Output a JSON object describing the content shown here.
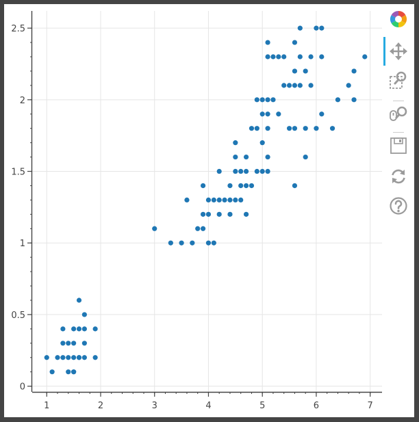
{
  "toolbar": {
    "tools": [
      {
        "name": "bokeh-logo-icon",
        "active": false
      },
      {
        "name": "pan-icon",
        "active": true
      },
      {
        "name": "box-zoom-icon",
        "active": false
      },
      {
        "name": "wheel-zoom-icon",
        "active": false
      },
      {
        "name": "save-icon",
        "active": false
      },
      {
        "name": "reset-icon",
        "active": false
      },
      {
        "name": "help-icon",
        "active": false
      }
    ]
  },
  "colors": {
    "point": "#1f77b4",
    "grid": "#e5e5e5",
    "axis": "#444444",
    "accent": "#26aae1"
  },
  "chart_data": {
    "type": "scatter",
    "title": "",
    "xlabel": "",
    "ylabel": "",
    "xlim": [
      0.73,
      7.22
    ],
    "ylim": [
      -0.04,
      2.62
    ],
    "xticks": [
      1,
      2,
      3,
      4,
      5,
      6,
      7
    ],
    "yticks": [
      0,
      0.5,
      1,
      1.5,
      2,
      2.5
    ],
    "xtick_labels": [
      "1",
      "2",
      "3",
      "4",
      "5",
      "6",
      "7"
    ],
    "ytick_labels": [
      "0",
      "0.5",
      "1",
      "1.5",
      "2",
      "2.5"
    ],
    "grid": true,
    "legend": "none",
    "series": [
      {
        "color": "#1f77b4",
        "points": [
          [
            1.0,
            0.2
          ],
          [
            1.1,
            0.1
          ],
          [
            1.2,
            0.2
          ],
          [
            1.3,
            0.2
          ],
          [
            1.3,
            0.3
          ],
          [
            1.3,
            0.4
          ],
          [
            1.4,
            0.2
          ],
          [
            1.4,
            0.3
          ],
          [
            1.4,
            0.1
          ],
          [
            1.5,
            0.2
          ],
          [
            1.5,
            0.1
          ],
          [
            1.5,
            0.3
          ],
          [
            1.5,
            0.4
          ],
          [
            1.6,
            0.2
          ],
          [
            1.6,
            0.4
          ],
          [
            1.6,
            0.6
          ],
          [
            1.7,
            0.2
          ],
          [
            1.7,
            0.3
          ],
          [
            1.7,
            0.4
          ],
          [
            1.7,
            0.5
          ],
          [
            1.9,
            0.2
          ],
          [
            1.9,
            0.4
          ],
          [
            1.6,
            0.2
          ],
          [
            1.5,
            0.1
          ],
          [
            3.0,
            1.1
          ],
          [
            3.3,
            1.0
          ],
          [
            3.5,
            1.0
          ],
          [
            3.6,
            1.3
          ],
          [
            3.7,
            1.0
          ],
          [
            3.8,
            1.1
          ],
          [
            3.9,
            1.1
          ],
          [
            3.9,
            1.2
          ],
          [
            3.9,
            1.4
          ],
          [
            4.0,
            1.0
          ],
          [
            4.0,
            1.2
          ],
          [
            4.0,
            1.3
          ],
          [
            4.1,
            1.0
          ],
          [
            4.1,
            1.3
          ],
          [
            4.2,
            1.2
          ],
          [
            4.2,
            1.3
          ],
          [
            4.2,
            1.5
          ],
          [
            4.3,
            1.3
          ],
          [
            4.4,
            1.2
          ],
          [
            4.4,
            1.3
          ],
          [
            4.4,
            1.4
          ],
          [
            4.5,
            1.3
          ],
          [
            4.5,
            1.5
          ],
          [
            4.5,
            1.6
          ],
          [
            4.5,
            1.7
          ],
          [
            4.6,
            1.3
          ],
          [
            4.6,
            1.4
          ],
          [
            4.6,
            1.5
          ],
          [
            4.7,
            1.2
          ],
          [
            4.7,
            1.4
          ],
          [
            4.7,
            1.5
          ],
          [
            4.7,
            1.6
          ],
          [
            4.8,
            1.4
          ],
          [
            4.8,
            1.8
          ],
          [
            4.9,
            1.5
          ],
          [
            4.9,
            1.8
          ],
          [
            4.9,
            2.0
          ],
          [
            5.0,
            1.5
          ],
          [
            5.0,
            1.7
          ],
          [
            5.0,
            1.9
          ],
          [
            5.0,
            2.0
          ],
          [
            5.1,
            1.5
          ],
          [
            5.1,
            1.6
          ],
          [
            5.1,
            1.8
          ],
          [
            5.1,
            1.9
          ],
          [
            5.1,
            2.0
          ],
          [
            5.1,
            2.3
          ],
          [
            5.1,
            2.4
          ],
          [
            5.2,
            2.0
          ],
          [
            5.2,
            2.3
          ],
          [
            5.3,
            1.9
          ],
          [
            5.3,
            2.3
          ],
          [
            5.4,
            2.1
          ],
          [
            5.4,
            2.3
          ],
          [
            5.5,
            1.8
          ],
          [
            5.5,
            2.1
          ],
          [
            5.6,
            1.4
          ],
          [
            5.6,
            1.8
          ],
          [
            5.6,
            2.1
          ],
          [
            5.6,
            2.2
          ],
          [
            5.6,
            2.4
          ],
          [
            5.7,
            2.1
          ],
          [
            5.7,
            2.3
          ],
          [
            5.7,
            2.5
          ],
          [
            5.8,
            1.6
          ],
          [
            5.8,
            1.8
          ],
          [
            5.8,
            2.2
          ],
          [
            5.9,
            2.1
          ],
          [
            5.9,
            2.3
          ],
          [
            6.0,
            1.8
          ],
          [
            6.0,
            2.5
          ],
          [
            6.1,
            1.9
          ],
          [
            6.1,
            2.3
          ],
          [
            6.1,
            2.5
          ],
          [
            6.3,
            1.8
          ],
          [
            6.4,
            2.0
          ],
          [
            6.6,
            2.1
          ],
          [
            6.7,
            2.0
          ],
          [
            6.7,
            2.2
          ],
          [
            6.9,
            2.3
          ]
        ]
      }
    ]
  }
}
